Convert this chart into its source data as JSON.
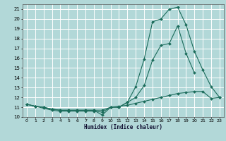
{
  "title": "",
  "xlabel": "Humidex (Indice chaleur)",
  "xlim": [
    -0.5,
    23.5
  ],
  "ylim": [
    10,
    21.5
  ],
  "yticks": [
    10,
    11,
    12,
    13,
    14,
    15,
    16,
    17,
    18,
    19,
    20,
    21
  ],
  "xticks": [
    0,
    1,
    2,
    3,
    4,
    5,
    6,
    7,
    8,
    9,
    10,
    11,
    12,
    13,
    14,
    15,
    16,
    17,
    18,
    19,
    20,
    21,
    22,
    23
  ],
  "bg_color": "#b2d8d8",
  "grid_color": "#ffffff",
  "line_color": "#1a6b5a",
  "series": [
    {
      "x": [
        0,
        1,
        2,
        3,
        4,
        5,
        6,
        7,
        8,
        9,
        10,
        11,
        12,
        13,
        14,
        15,
        16,
        17,
        18,
        19,
        20,
        21,
        22,
        23
      ],
      "y": [
        11.3,
        11.1,
        11.0,
        10.8,
        10.7,
        10.7,
        10.7,
        10.7,
        10.7,
        10.2,
        11.0,
        11.0,
        11.5,
        13.1,
        15.9,
        19.7,
        20.0,
        21.0,
        21.2,
        19.4,
        16.7,
        14.8,
        13.1,
        12.0
      ]
    },
    {
      "x": [
        0,
        1,
        2,
        3,
        4,
        5,
        6,
        7,
        8,
        9,
        10,
        11,
        12,
        13,
        14,
        15,
        16,
        17,
        18,
        19,
        20
      ],
      "y": [
        11.3,
        11.1,
        10.9,
        10.7,
        10.6,
        10.6,
        10.6,
        10.6,
        10.6,
        10.5,
        11.0,
        11.0,
        11.5,
        12.0,
        13.2,
        15.8,
        17.3,
        17.5,
        19.3,
        16.5,
        14.5
      ]
    },
    {
      "x": [
        0,
        1,
        2,
        3,
        4,
        5,
        6,
        7,
        8,
        9,
        10,
        11,
        12,
        13,
        14,
        15,
        16,
        17,
        18,
        19,
        20,
        21,
        22,
        23
      ],
      "y": [
        11.3,
        11.1,
        11.0,
        10.8,
        10.7,
        10.7,
        10.7,
        10.7,
        10.7,
        10.7,
        11.0,
        11.1,
        11.2,
        11.4,
        11.6,
        11.8,
        12.0,
        12.2,
        12.4,
        12.5,
        12.6,
        12.6,
        11.9,
        12.0
      ]
    }
  ]
}
